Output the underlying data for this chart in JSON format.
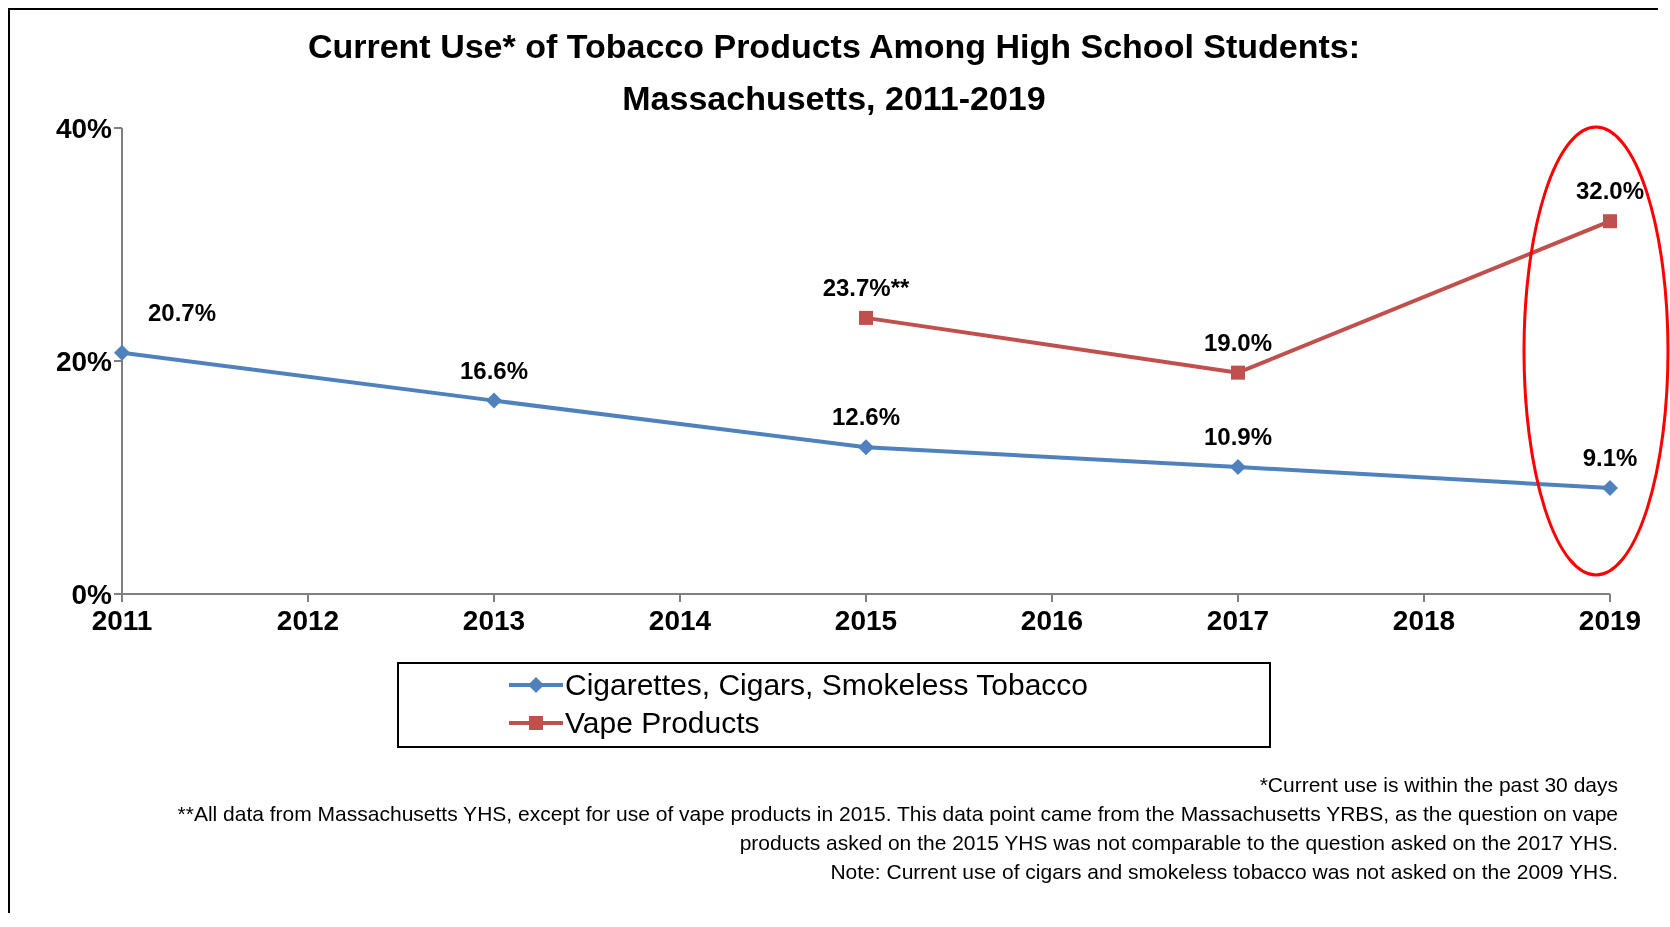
{
  "chart_data": {
    "type": "line",
    "title": "Current Use* of Tobacco Products Among High School Students: Massachusetts, 2011-2019",
    "xlim": [
      2011,
      2019
    ],
    "xticks": [
      2011,
      2012,
      2013,
      2014,
      2015,
      2016,
      2017,
      2018,
      2019
    ],
    "ylim": [
      0,
      40
    ],
    "yticks": [
      {
        "value": 0,
        "label": "0%"
      },
      {
        "value": 20,
        "label": "20%"
      },
      {
        "value": 40,
        "label": "40%"
      }
    ],
    "legend": "bottom",
    "line_style": "solid",
    "series": [
      {
        "name": "Cigarettes, Cigars, Smokeless Tobacco",
        "color": "#4f81bd",
        "marker": "diamond",
        "x": [
          2011,
          2013,
          2015,
          2017,
          2019
        ],
        "values": [
          20.7,
          16.6,
          12.6,
          10.9,
          9.1
        ],
        "value_labels": [
          "20.7%",
          "16.6%",
          "12.6%",
          "10.9%",
          "9.1%"
        ]
      },
      {
        "name": "Vape Products",
        "color": "#c0504d",
        "marker": "square",
        "x": [
          2015,
          2017,
          2019
        ],
        "values": [
          23.7,
          19.0,
          32.0
        ],
        "value_labels": [
          "23.7%**",
          "19.0%",
          "32.0%"
        ]
      }
    ],
    "annotations": [
      "*Current use is within the past 30 days",
      "**All data from Massachusetts YHS, except for use of vape products in 2015. This data point came from the Massachusetts YRBS, as the question on vape products asked on the 2015 YHS was not comparable to the question asked on the 2017 YHS.",
      "Note: Current use of cigars and smokeless tobacco was not asked on the 2009 YHS."
    ]
  }
}
